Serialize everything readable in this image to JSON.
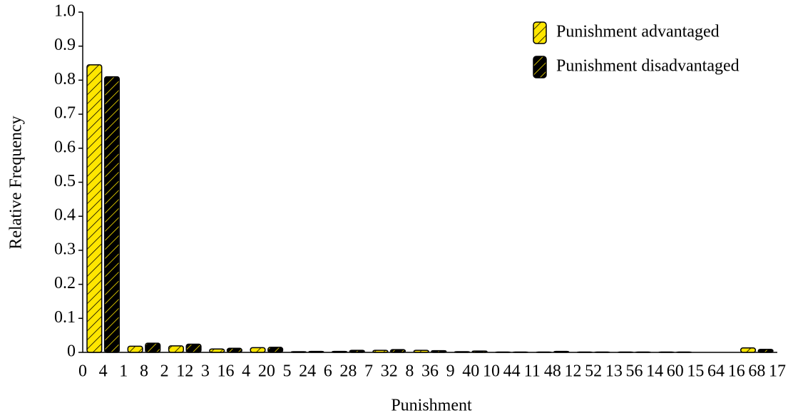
{
  "chart_data": {
    "type": "bar",
    "xlabel": "Punishment",
    "ylabel": "Relative Frequency",
    "categories": [
      "4",
      "8",
      "12",
      "16",
      "20",
      "24",
      "28",
      "32",
      "36",
      "40",
      "44",
      "48",
      "52",
      "56",
      "60",
      "64",
      "68"
    ],
    "boundary_labels": [
      "0",
      "1",
      "2",
      "3",
      "4",
      "5",
      "6",
      "7",
      "8",
      "9",
      "10",
      "11",
      "12",
      "13",
      "14",
      "15",
      "16",
      "17"
    ],
    "series": [
      {
        "name": "Punishment advantaged",
        "color": "#ffe600",
        "hatch_color": "#000000",
        "values": [
          0.845,
          0.018,
          0.019,
          0.01,
          0.014,
          0.002,
          0.003,
          0.006,
          0.006,
          0.002,
          0.001,
          0.001,
          0.001,
          0.001,
          0.001,
          0,
          0.013
        ]
      },
      {
        "name": "Punishment disadvantaged",
        "color": "#000000",
        "hatch_color": "#ffe600",
        "values": [
          0.81,
          0.027,
          0.024,
          0.012,
          0.015,
          0.003,
          0.006,
          0.008,
          0.005,
          0.004,
          0.001,
          0.003,
          0.001,
          0.001,
          0.001,
          0,
          0.009
        ]
      }
    ],
    "ylim": [
      0,
      1
    ],
    "yticks": [
      0,
      0.1,
      0.2,
      0.3,
      0.4,
      0.5,
      0.6,
      0.7,
      0.8,
      0.9,
      {
        "value": 1,
        "label": "1.0"
      }
    ],
    "grid": false,
    "legend": "upper right"
  }
}
